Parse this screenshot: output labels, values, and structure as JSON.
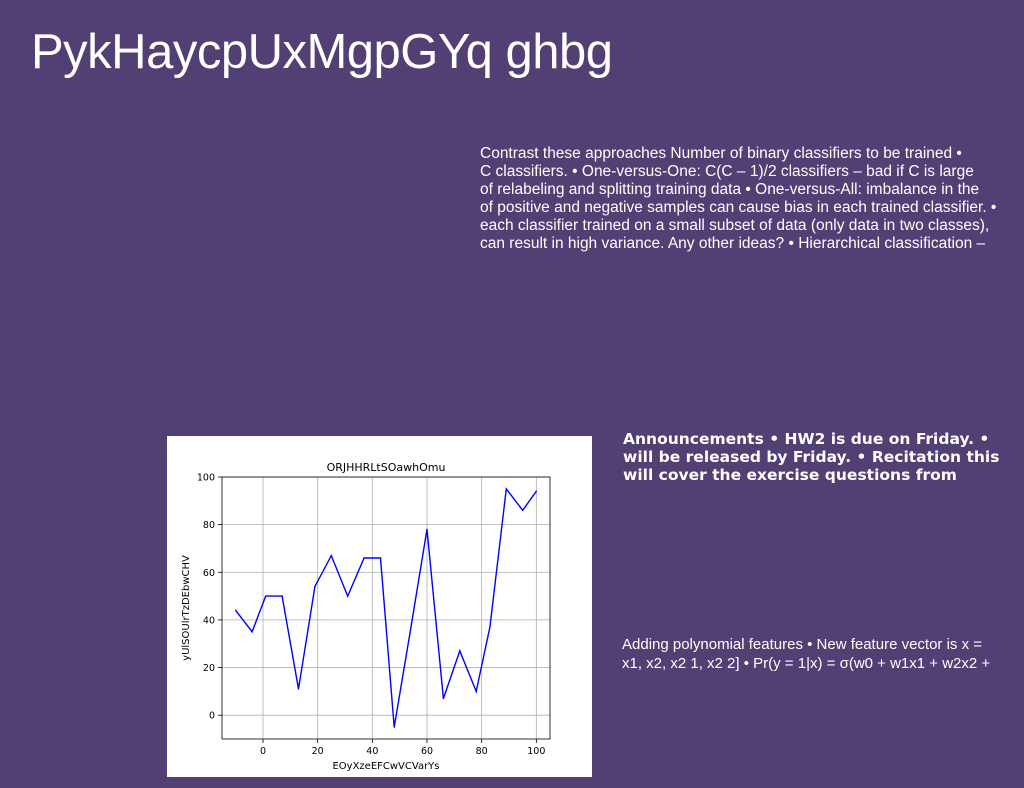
{
  "slide": {
    "title": "PykHaycpUxMgpGYq ghbg",
    "text_block_1": [
      "Contrast these approaches Number of binary classifiers to be trained •",
      "C classifiers. • One-versus-One: C(C – 1)/2 classifiers – bad if C is large",
      "of relabeling and splitting training data • One-versus-All: imbalance in the",
      "of positive and negative samples can cause bias in each trained classifier. •",
      "each classifier trained on a small subset of data (only data in two classes),",
      "can result in high variance. Any other ideas? • Hierarchical classification –"
    ],
    "text_block_2": [
      "Announcements • HW2 is due on Friday. •",
      "will be released by Friday. • Recitation this",
      "will cover the exercise questions from"
    ],
    "text_block_3": [
      "Adding polynomial features • New feature vector is x =",
      "x1, x2, x2 1, x2 2] • Pr(y = 1|x) = σ(w0 + w1x1 + w2x2 +"
    ]
  },
  "colors": {
    "background": "#523f74",
    "text": "#ffffff",
    "line": "#0000ff"
  },
  "chart_data": {
    "type": "line",
    "title": "ORJHHRLtSOawhOmu",
    "xlabel": "EOyXzeEFCwVCVarYs",
    "ylabel": "yUlSOUlrTzDEbwCHV",
    "x": [
      -10,
      -4,
      1,
      7,
      13,
      19,
      25,
      31,
      37,
      43,
      48,
      54,
      60,
      66,
      72,
      78,
      83,
      89,
      95,
      100
    ],
    "y": [
      44,
      35,
      50,
      50,
      11,
      54,
      67,
      50,
      66,
      66,
      -5,
      36,
      78,
      7,
      27,
      10,
      37,
      95,
      86,
      94
    ],
    "xlim": [
      -15,
      105
    ],
    "ylim": [
      -10,
      100
    ],
    "xticks": [
      0,
      20,
      40,
      60,
      80,
      100
    ],
    "yticks": [
      0,
      20,
      40,
      60,
      80,
      100
    ],
    "grid": true
  }
}
